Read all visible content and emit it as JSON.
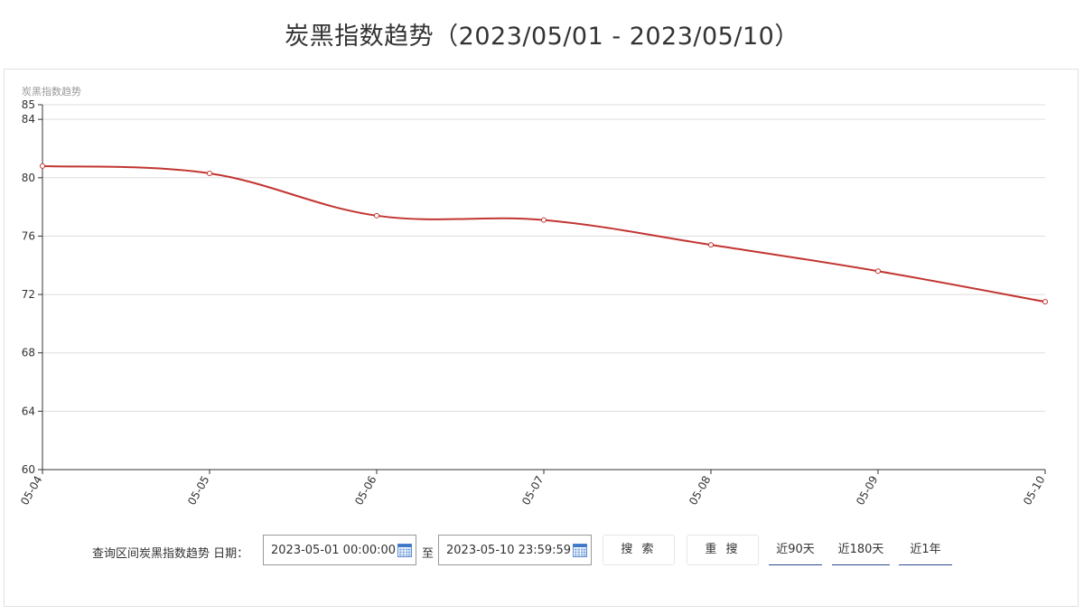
{
  "page_title": "炭黑指数趋势（2023/05/01 - 2023/05/10）",
  "chart_data": {
    "type": "line",
    "title": "炭黑指数趋势（2023/05/01 - 2023/05/10）",
    "ylabel": "炭黑指数趋势",
    "xlabel": "",
    "categories": [
      "05-04",
      "05-05",
      "05-06",
      "05-07",
      "05-08",
      "05-09",
      "05-10"
    ],
    "series": [
      {
        "values": [
          80.8,
          80.3,
          77.4,
          77.1,
          75.4,
          73.6,
          71.5
        ]
      }
    ],
    "ylim": [
      60,
      85
    ],
    "yticks": [
      60,
      64,
      68,
      72,
      76,
      80,
      84,
      85
    ],
    "grid": true,
    "smooth": true,
    "line_color": "#c23531"
  },
  "controls": {
    "query_label": "查询区间炭黑指数趋势 日期：",
    "start_date": "2023-05-01 00:00:00",
    "to_label": "至",
    "end_date": "2023-05-10 23:59:59",
    "search_button": "搜 索",
    "reset_button": "重 搜",
    "quick_ranges": [
      "近90天",
      "近180天",
      "近1年"
    ],
    "calendar_icon": "calendar-icon",
    "accent_color": "#2d4a8a"
  }
}
